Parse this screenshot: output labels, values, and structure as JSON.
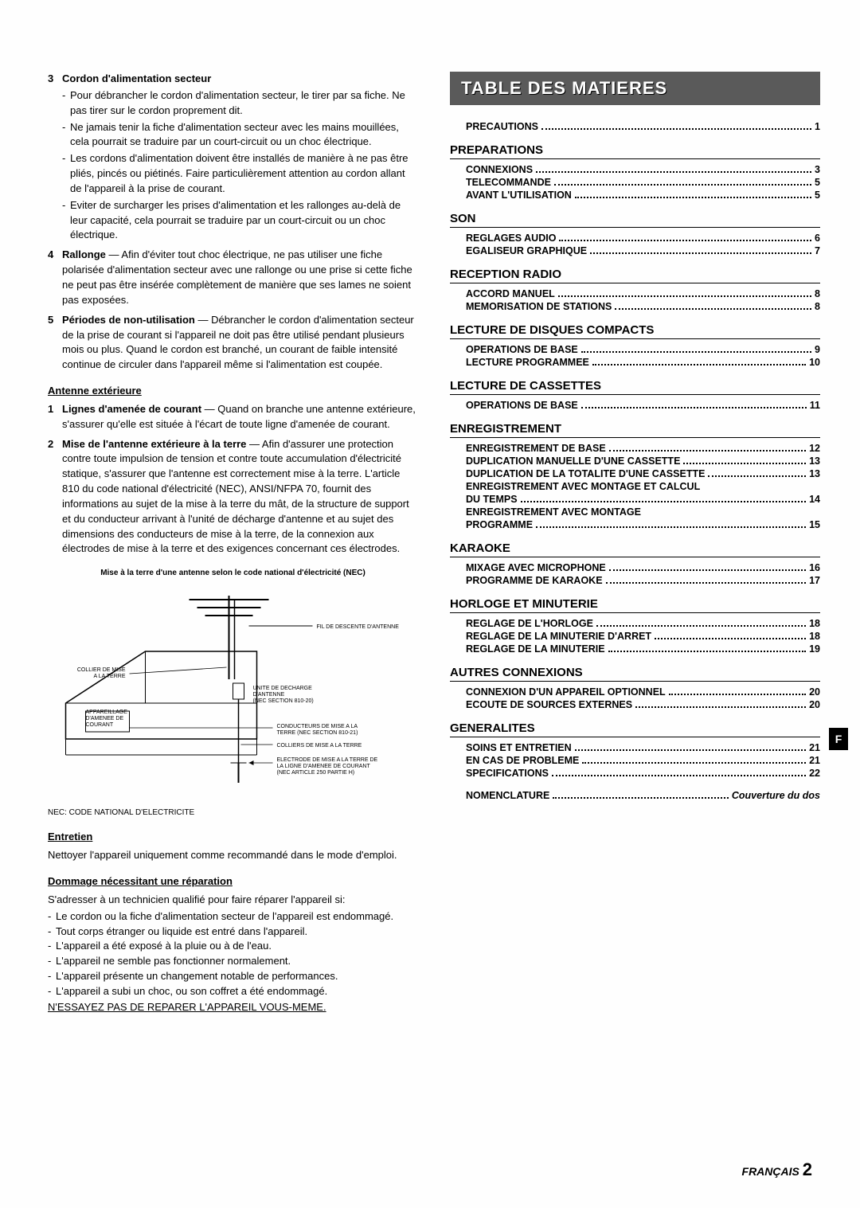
{
  "left": {
    "items3to5": [
      {
        "num": "3",
        "title": "Cordon d'alimentation secteur",
        "subs": [
          "Pour débrancher le cordon d'alimentation secteur, le tirer par sa fiche. Ne pas tirer sur le cordon proprement dit.",
          "Ne jamais tenir la fiche d'alimentation secteur avec les mains mouillées, cela pourrait se traduire par un court-circuit ou un choc électrique.",
          "Les cordons d'alimentation doivent être installés de manière à ne pas être pliés, pincés ou piétinés. Faire particulièrement attention au cordon allant de l'appareil à la prise de courant.",
          "Eviter de surcharger les prises d'alimentation et les rallonges au-delà de leur capacité, cela pourrait se traduire par un court-circuit ou un choc électrique."
        ]
      },
      {
        "num": "4",
        "title": "Rallonge",
        "title_rest": " — Afin d'éviter tout choc électrique, ne pas utiliser une fiche polarisée d'alimentation secteur avec une rallonge ou une prise si cette fiche ne peut pas être insérée complètement de manière que ses lames ne soient pas exposées."
      },
      {
        "num": "5",
        "title": "Périodes de non-utilisation",
        "title_rest": " — Débrancher le cordon d'alimentation secteur de la prise de courant si l'appareil ne doit pas être utilisé pendant plusieurs mois ou plus. Quand le cordon est branché, un courant de faible intensité continue de circuler dans l'appareil même si l'alimentation est coupée."
      }
    ],
    "antenne_heading": "Antenne extérieure",
    "antenne_items": [
      {
        "num": "1",
        "title": "Lignes d'amenée de courant",
        "rest": " — Quand on branche une antenne extérieure, s'assurer qu'elle est située à l'écart de toute ligne d'amenée de courant."
      },
      {
        "num": "2",
        "title": "Mise de l'antenne extérieure à la terre",
        "rest": " — Afin d'assurer une protection contre toute impulsion de tension et contre toute accumulation d'électricité statique, s'assurer que l'antenne est correctement mise à la terre. L'article 810 du code national d'électricité (NEC), ANSI/NFPA 70, fournit des informations au sujet de la mise à la terre du mât, de la structure de support et du conducteur arrivant à l'unité de décharge d'antenne et au sujet des dimensions des conducteurs de mise à la terre, de la connexion aux électrodes de mise à la terre et des exigences concernant ces électrodes."
      }
    ],
    "diagram_caption": "Mise à la terre d'une antenne selon le code national d'électricité (NEC)",
    "diagram_labels": {
      "fil": "FIL DE DESCENTE D'ANTENNE",
      "collier": "COLLIER DE MISE A LA TERRE",
      "unite": "UNITE DE DECHARGE D'ANTENNE (NEC SECTION 810-20)",
      "appareillage": "APPAREILLAGE D'AMENEE DE COURANT",
      "conducteurs": "CONDUCTEURS DE MISE A LA TERRE (NEC SECTION 810-21)",
      "colliers": "COLLIERS DE MISE A LA TERRE",
      "electrode": "ELECTRODE DE MISE A LA TERRE DE LA LIGNE D'AMENEE DE COURANT (NEC ARTICLE 250 PARTIE H)"
    },
    "nec_note": "NEC: CODE NATIONAL D'ELECTRICITE",
    "entretien_heading": "Entretien",
    "entretien_text": "Nettoyer l'appareil uniquement comme recommandé dans le mode d'emploi.",
    "reparation_heading": "Dommage nécessitant une réparation",
    "reparation_intro": "S'adresser à un technicien qualifié pour faire réparer l'appareil si:",
    "reparation_items": [
      "Le cordon ou la fiche d'alimentation secteur de l'appareil est endommagé.",
      "Tout corps étranger ou liquide est entré dans l'appareil.",
      "L'appareil a été exposé à la pluie ou à de l'eau.",
      "L'appareil ne semble pas fonctionner normalement.",
      "L'appareil présente un changement notable de performances.",
      "L'appareil a subi un choc, ou son coffret a été endommagé."
    ],
    "no_reparer": "N'ESSAYEZ PAS DE REPARER L'APPAREIL VOUS-MEME."
  },
  "right": {
    "title": "TABLE DES MATIERES",
    "precautions": {
      "label": "PRECAUTIONS",
      "page": "1"
    },
    "sections": [
      {
        "heading": "PREPARATIONS",
        "lines": [
          {
            "label": "CONNEXIONS",
            "page": "3"
          },
          {
            "label": "TELECOMMANDE",
            "page": "5"
          },
          {
            "label": "AVANT L'UTILISATION",
            "page": "5"
          }
        ]
      },
      {
        "heading": "SON",
        "lines": [
          {
            "label": "REGLAGES AUDIO",
            "page": "6"
          },
          {
            "label": "EGALISEUR GRAPHIQUE",
            "page": "7"
          }
        ]
      },
      {
        "heading": "RECEPTION RADIO",
        "lines": [
          {
            "label": "ACCORD MANUEL",
            "page": "8"
          },
          {
            "label": "MEMORISATION DE STATIONS",
            "page": "8"
          }
        ]
      },
      {
        "heading": "LECTURE DE DISQUES COMPACTS",
        "lines": [
          {
            "label": "OPERATIONS DE BASE",
            "page": "9"
          },
          {
            "label": "LECTURE PROGRAMMEE",
            "page": "10"
          }
        ]
      },
      {
        "heading": "LECTURE DE CASSETTES",
        "lines": [
          {
            "label": "OPERATIONS DE BASE",
            "page": "11"
          }
        ]
      },
      {
        "heading": "ENREGISTREMENT",
        "lines": [
          {
            "label": "ENREGISTREMENT DE BASE",
            "page": "12"
          },
          {
            "label": "DUPLICATION MANUELLE D'UNE CASSETTE",
            "page": "13"
          },
          {
            "label": "DUPLICATION DE LA TOTALITE D'UNE CASSETTE",
            "page": "13"
          },
          {
            "label_multiline": [
              "ENREGISTREMENT AVEC MONTAGE ET CALCUL",
              "DU TEMPS"
            ],
            "page": "14"
          },
          {
            "label_multiline": [
              "ENREGISTREMENT AVEC MONTAGE",
              "PROGRAMME"
            ],
            "page": "15"
          }
        ]
      },
      {
        "heading": "KARAOKE",
        "lines": [
          {
            "label": "MIXAGE AVEC MICROPHONE",
            "page": "16"
          },
          {
            "label": "PROGRAMME DE KARAOKE",
            "page": "17"
          }
        ]
      },
      {
        "heading": "HORLOGE ET MINUTERIE",
        "lines": [
          {
            "label": "REGLAGE DE L'HORLOGE",
            "page": "18"
          },
          {
            "label": "REGLAGE DE LA MINUTERIE D'ARRET",
            "page": "18"
          },
          {
            "label": "REGLAGE DE LA MINUTERIE",
            "page": "19"
          }
        ]
      },
      {
        "heading": "AUTRES CONNEXIONS",
        "lines": [
          {
            "label": "CONNEXION D'UN APPAREIL OPTIONNEL",
            "page": "20"
          },
          {
            "label": "ECOUTE DE SOURCES EXTERNES",
            "page": "20"
          }
        ]
      },
      {
        "heading": "GENERALITES",
        "lines": [
          {
            "label": "SOINS ET ENTRETIEN",
            "page": "21"
          },
          {
            "label": "EN CAS DE PROBLEME",
            "page": "21"
          },
          {
            "label": "SPECIFICATIONS",
            "page": "22"
          }
        ]
      }
    ],
    "nomenclature": {
      "label": "NOMENCLATURE",
      "page": "Couverture du dos"
    }
  },
  "footer": {
    "lang": "FRANÇAIS",
    "page": "2"
  },
  "lang_tab": "F"
}
